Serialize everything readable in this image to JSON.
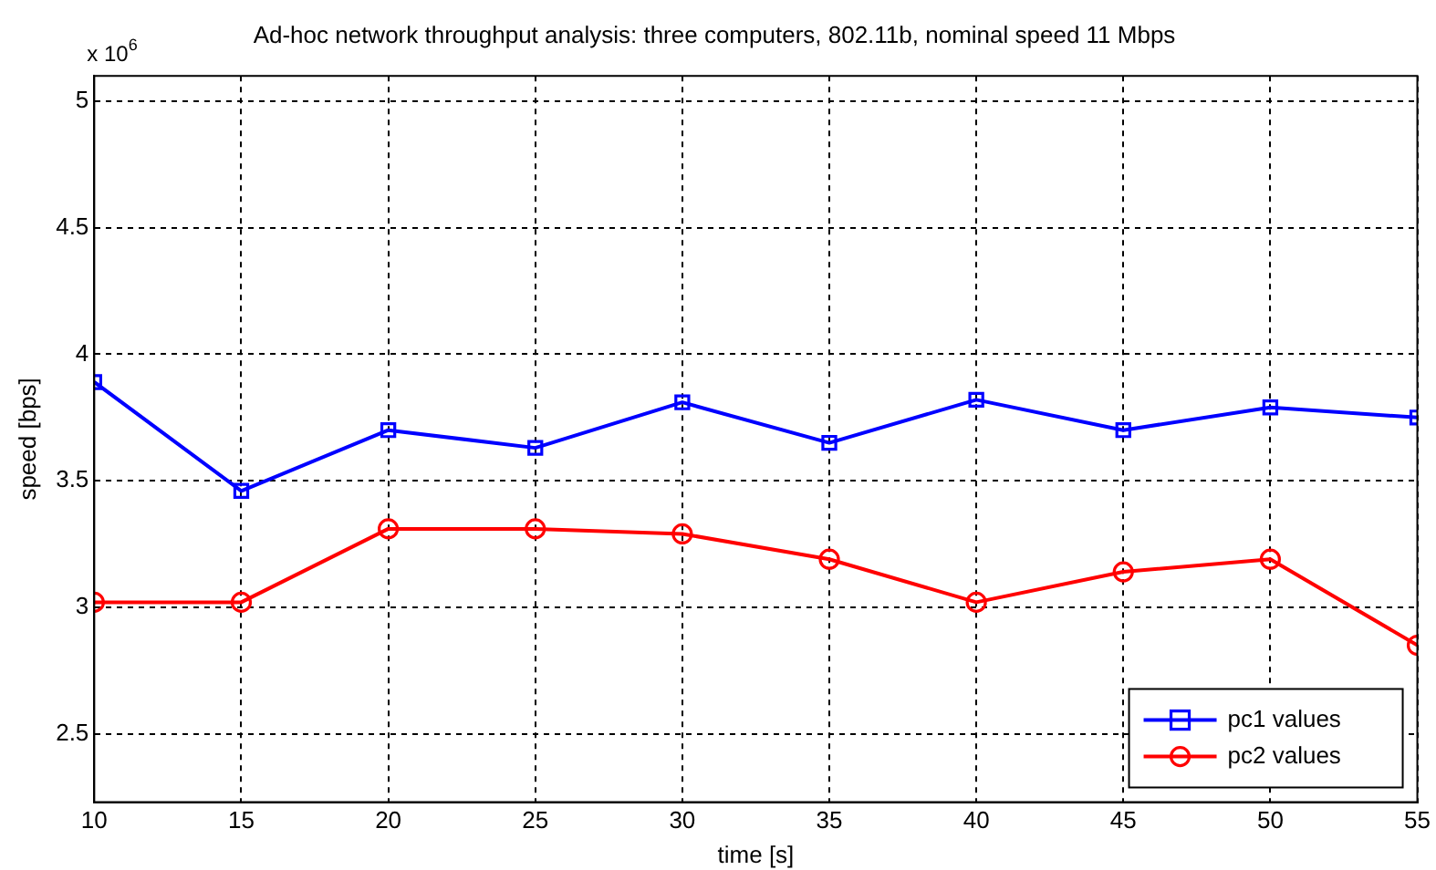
{
  "chart_data": {
    "type": "line",
    "title": "Ad-hoc network throughput analysis: three computers, 802.11b, nominal speed 11 Mbps",
    "xlabel": "time [s]",
    "ylabel": "speed [bps]",
    "annotations": [
      "x 10$^{6}$"
    ],
    "x": [
      10,
      15,
      20,
      25,
      30,
      35,
      40,
      45,
      50,
      55
    ],
    "series": [
      {
        "name": "pc1 values",
        "color": "#0000ff",
        "marker": "square",
        "values": [
          3.89,
          3.46,
          3.7,
          3.63,
          3.81,
          3.65,
          3.82,
          3.7,
          3.79,
          3.75
        ]
      },
      {
        "name": "pc2 values",
        "color": "#ff0000",
        "marker": "circle",
        "values": [
          3.02,
          3.02,
          3.31,
          3.31,
          3.29,
          3.19,
          3.02,
          3.14,
          3.19,
          2.85
        ]
      }
    ],
    "xlim": [
      10,
      55
    ],
    "xticks": [
      10,
      15,
      20,
      25,
      30,
      35,
      40,
      45,
      50,
      55
    ],
    "ylim": [
      2.23,
      5.1
    ],
    "yticks": [
      2.5,
      3,
      3.5,
      4,
      4.5,
      5
    ],
    "grid": true,
    "legend": "bottom right",
    "line_style": "solid"
  }
}
